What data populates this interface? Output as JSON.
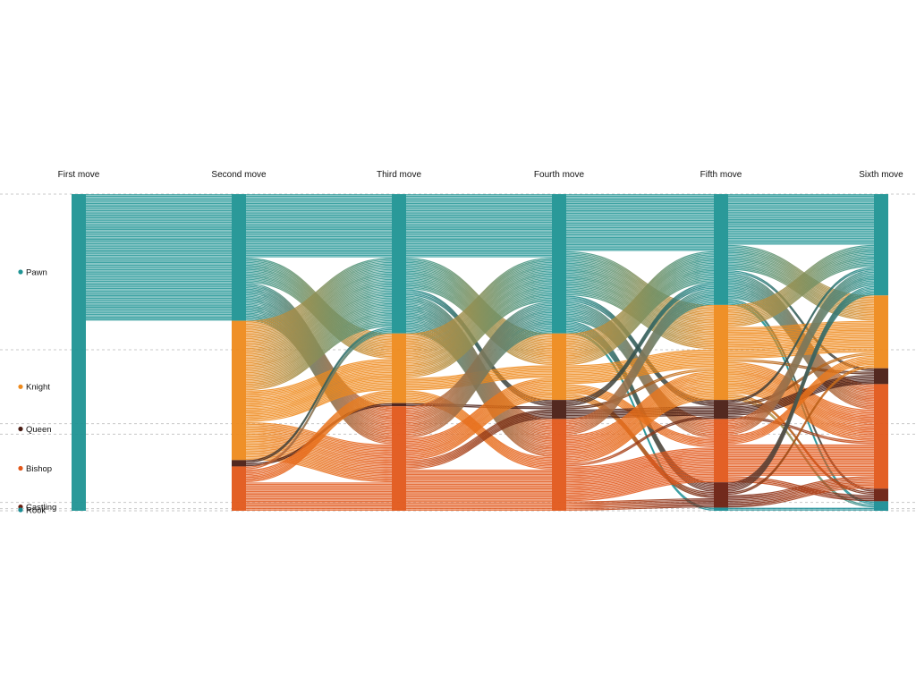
{
  "chart_data": {
    "type": "sankey",
    "columns": [
      "First move",
      "Second move",
      "Third move",
      "Fourth move",
      "Fifth move",
      "Sixth move"
    ],
    "categories": [
      {
        "name": "Pawn",
        "color": "#1f9494"
      },
      {
        "name": "Knight",
        "color": "#ee8a1c"
      },
      {
        "name": "Queen",
        "color": "#4a1d14"
      },
      {
        "name": "Bishop",
        "color": "#e2571a"
      },
      {
        "name": "Castling",
        "color": "#6a1f10"
      },
      {
        "name": "Rook",
        "color": "#1a8d95"
      }
    ],
    "distribution": [
      {
        "Pawn": 1.0,
        "Knight": 0.0,
        "Queen": 0.0,
        "Bishop": 0.0,
        "Castling": 0.0,
        "Rook": 0.0
      },
      {
        "Pawn": 0.4,
        "Knight": 0.44,
        "Queen": 0.02,
        "Bishop": 0.14,
        "Castling": 0.0,
        "Rook": 0.0
      },
      {
        "Pawn": 0.44,
        "Knight": 0.22,
        "Queen": 0.01,
        "Bishop": 0.33,
        "Castling": 0.0,
        "Rook": 0.0
      },
      {
        "Pawn": 0.44,
        "Knight": 0.21,
        "Queen": 0.06,
        "Bishop": 0.29,
        "Castling": 0.0,
        "Rook": 0.0
      },
      {
        "Pawn": 0.35,
        "Knight": 0.3,
        "Queen": 0.06,
        "Bishop": 0.2,
        "Castling": 0.08,
        "Rook": 0.01
      },
      {
        "Pawn": 0.32,
        "Knight": 0.23,
        "Queen": 0.05,
        "Bishop": 0.33,
        "Castling": 0.04,
        "Rook": 0.03
      }
    ],
    "flows": [
      {
        "from_col": 0,
        "from": "Pawn",
        "to": "Pawn",
        "value": 0.4
      },
      {
        "from_col": 0,
        "from": "Pawn",
        "to": "Knight",
        "value": 0.44
      },
      {
        "from_col": 0,
        "from": "Pawn",
        "to": "Queen",
        "value": 0.02
      },
      {
        "from_col": 0,
        "from": "Pawn",
        "to": "Bishop",
        "value": 0.14
      },
      {
        "from_col": 1,
        "from": "Pawn",
        "to": "Pawn",
        "value": 0.2
      },
      {
        "from_col": 1,
        "from": "Pawn",
        "to": "Knight",
        "value": 0.08
      },
      {
        "from_col": 1,
        "from": "Pawn",
        "to": "Bishop",
        "value": 0.12
      },
      {
        "from_col": 1,
        "from": "Knight",
        "to": "Pawn",
        "value": 0.22
      },
      {
        "from_col": 1,
        "from": "Knight",
        "to": "Knight",
        "value": 0.1
      },
      {
        "from_col": 1,
        "from": "Knight",
        "to": "Bishop",
        "value": 0.12
      },
      {
        "from_col": 1,
        "from": "Queen",
        "to": "Pawn",
        "value": 0.01
      },
      {
        "from_col": 1,
        "from": "Queen",
        "to": "Queen",
        "value": 0.01
      },
      {
        "from_col": 1,
        "from": "Bishop",
        "to": "Pawn",
        "value": 0.01
      },
      {
        "from_col": 1,
        "from": "Bishop",
        "to": "Knight",
        "value": 0.04
      },
      {
        "from_col": 1,
        "from": "Bishop",
        "to": "Bishop",
        "value": 0.09
      },
      {
        "from_col": 2,
        "from": "Pawn",
        "to": "Pawn",
        "value": 0.2
      },
      {
        "from_col": 2,
        "from": "Pawn",
        "to": "Knight",
        "value": 0.1
      },
      {
        "from_col": 2,
        "from": "Pawn",
        "to": "Queen",
        "value": 0.02
      },
      {
        "from_col": 2,
        "from": "Pawn",
        "to": "Bishop",
        "value": 0.12
      },
      {
        "from_col": 2,
        "from": "Knight",
        "to": "Pawn",
        "value": 0.14
      },
      {
        "from_col": 2,
        "from": "Knight",
        "to": "Knight",
        "value": 0.04
      },
      {
        "from_col": 2,
        "from": "Knight",
        "to": "Bishop",
        "value": 0.04
      },
      {
        "from_col": 2,
        "from": "Queen",
        "to": "Queen",
        "value": 0.01
      },
      {
        "from_col": 2,
        "from": "Bishop",
        "to": "Pawn",
        "value": 0.1
      },
      {
        "from_col": 2,
        "from": "Bishop",
        "to": "Knight",
        "value": 0.07
      },
      {
        "from_col": 2,
        "from": "Bishop",
        "to": "Queen",
        "value": 0.03
      },
      {
        "from_col": 2,
        "from": "Bishop",
        "to": "Bishop",
        "value": 0.13
      },
      {
        "from_col": 3,
        "from": "Pawn",
        "to": "Pawn",
        "value": 0.18
      },
      {
        "from_col": 3,
        "from": "Pawn",
        "to": "Knight",
        "value": 0.14
      },
      {
        "from_col": 3,
        "from": "Pawn",
        "to": "Queen",
        "value": 0.02
      },
      {
        "from_col": 3,
        "from": "Pawn",
        "to": "Bishop",
        "value": 0.06
      },
      {
        "from_col": 3,
        "from": "Pawn",
        "to": "Castling",
        "value": 0.03
      },
      {
        "from_col": 3,
        "from": "Pawn",
        "to": "Rook",
        "value": 0.01
      },
      {
        "from_col": 3,
        "from": "Knight",
        "to": "Pawn",
        "value": 0.1
      },
      {
        "from_col": 3,
        "from": "Knight",
        "to": "Knight",
        "value": 0.06
      },
      {
        "from_col": 3,
        "from": "Knight",
        "to": "Bishop",
        "value": 0.03
      },
      {
        "from_col": 3,
        "from": "Knight",
        "to": "Castling",
        "value": 0.02
      },
      {
        "from_col": 3,
        "from": "Queen",
        "to": "Queen",
        "value": 0.03
      },
      {
        "from_col": 3,
        "from": "Queen",
        "to": "Pawn",
        "value": 0.02
      },
      {
        "from_col": 3,
        "from": "Queen",
        "to": "Knight",
        "value": 0.01
      },
      {
        "from_col": 3,
        "from": "Bishop",
        "to": "Pawn",
        "value": 0.05
      },
      {
        "from_col": 3,
        "from": "Bishop",
        "to": "Knight",
        "value": 0.09
      },
      {
        "from_col": 3,
        "from": "Bishop",
        "to": "Queen",
        "value": 0.01
      },
      {
        "from_col": 3,
        "from": "Bishop",
        "to": "Bishop",
        "value": 0.11
      },
      {
        "from_col": 3,
        "from": "Bishop",
        "to": "Castling",
        "value": 0.03
      },
      {
        "from_col": 4,
        "from": "Pawn",
        "to": "Pawn",
        "value": 0.16
      },
      {
        "from_col": 4,
        "from": "Pawn",
        "to": "Knight",
        "value": 0.08
      },
      {
        "from_col": 4,
        "from": "Pawn",
        "to": "Queen",
        "value": 0.01
      },
      {
        "from_col": 4,
        "from": "Pawn",
        "to": "Bishop",
        "value": 0.08
      },
      {
        "from_col": 4,
        "from": "Pawn",
        "to": "Castling",
        "value": 0.01
      },
      {
        "from_col": 4,
        "from": "Pawn",
        "to": "Rook",
        "value": 0.01
      },
      {
        "from_col": 4,
        "from": "Knight",
        "to": "Pawn",
        "value": 0.07
      },
      {
        "from_col": 4,
        "from": "Knight",
        "to": "Knight",
        "value": 0.1
      },
      {
        "from_col": 4,
        "from": "Knight",
        "to": "Queen",
        "value": 0.01
      },
      {
        "from_col": 4,
        "from": "Knight",
        "to": "Bishop",
        "value": 0.1
      },
      {
        "from_col": 4,
        "from": "Knight",
        "to": "Castling",
        "value": 0.01
      },
      {
        "from_col": 4,
        "from": "Knight",
        "to": "Rook",
        "value": 0.01
      },
      {
        "from_col": 4,
        "from": "Queen",
        "to": "Queen",
        "value": 0.03
      },
      {
        "from_col": 4,
        "from": "Queen",
        "to": "Pawn",
        "value": 0.01
      },
      {
        "from_col": 4,
        "from": "Queen",
        "to": "Knight",
        "value": 0.01
      },
      {
        "from_col": 4,
        "from": "Queen",
        "to": "Bishop",
        "value": 0.01
      },
      {
        "from_col": 4,
        "from": "Bishop",
        "to": "Pawn",
        "value": 0.05
      },
      {
        "from_col": 4,
        "from": "Bishop",
        "to": "Knight",
        "value": 0.03
      },
      {
        "from_col": 4,
        "from": "Bishop",
        "to": "Bishop",
        "value": 0.1
      },
      {
        "from_col": 4,
        "from": "Bishop",
        "to": "Castling",
        "value": 0.02
      },
      {
        "from_col": 4,
        "from": "Castling",
        "to": "Pawn",
        "value": 0.03
      },
      {
        "from_col": 4,
        "from": "Castling",
        "to": "Knight",
        "value": 0.01
      },
      {
        "from_col": 4,
        "from": "Castling",
        "to": "Bishop",
        "value": 0.04
      },
      {
        "from_col": 4,
        "from": "Rook",
        "to": "Rook",
        "value": 0.01
      }
    ]
  }
}
